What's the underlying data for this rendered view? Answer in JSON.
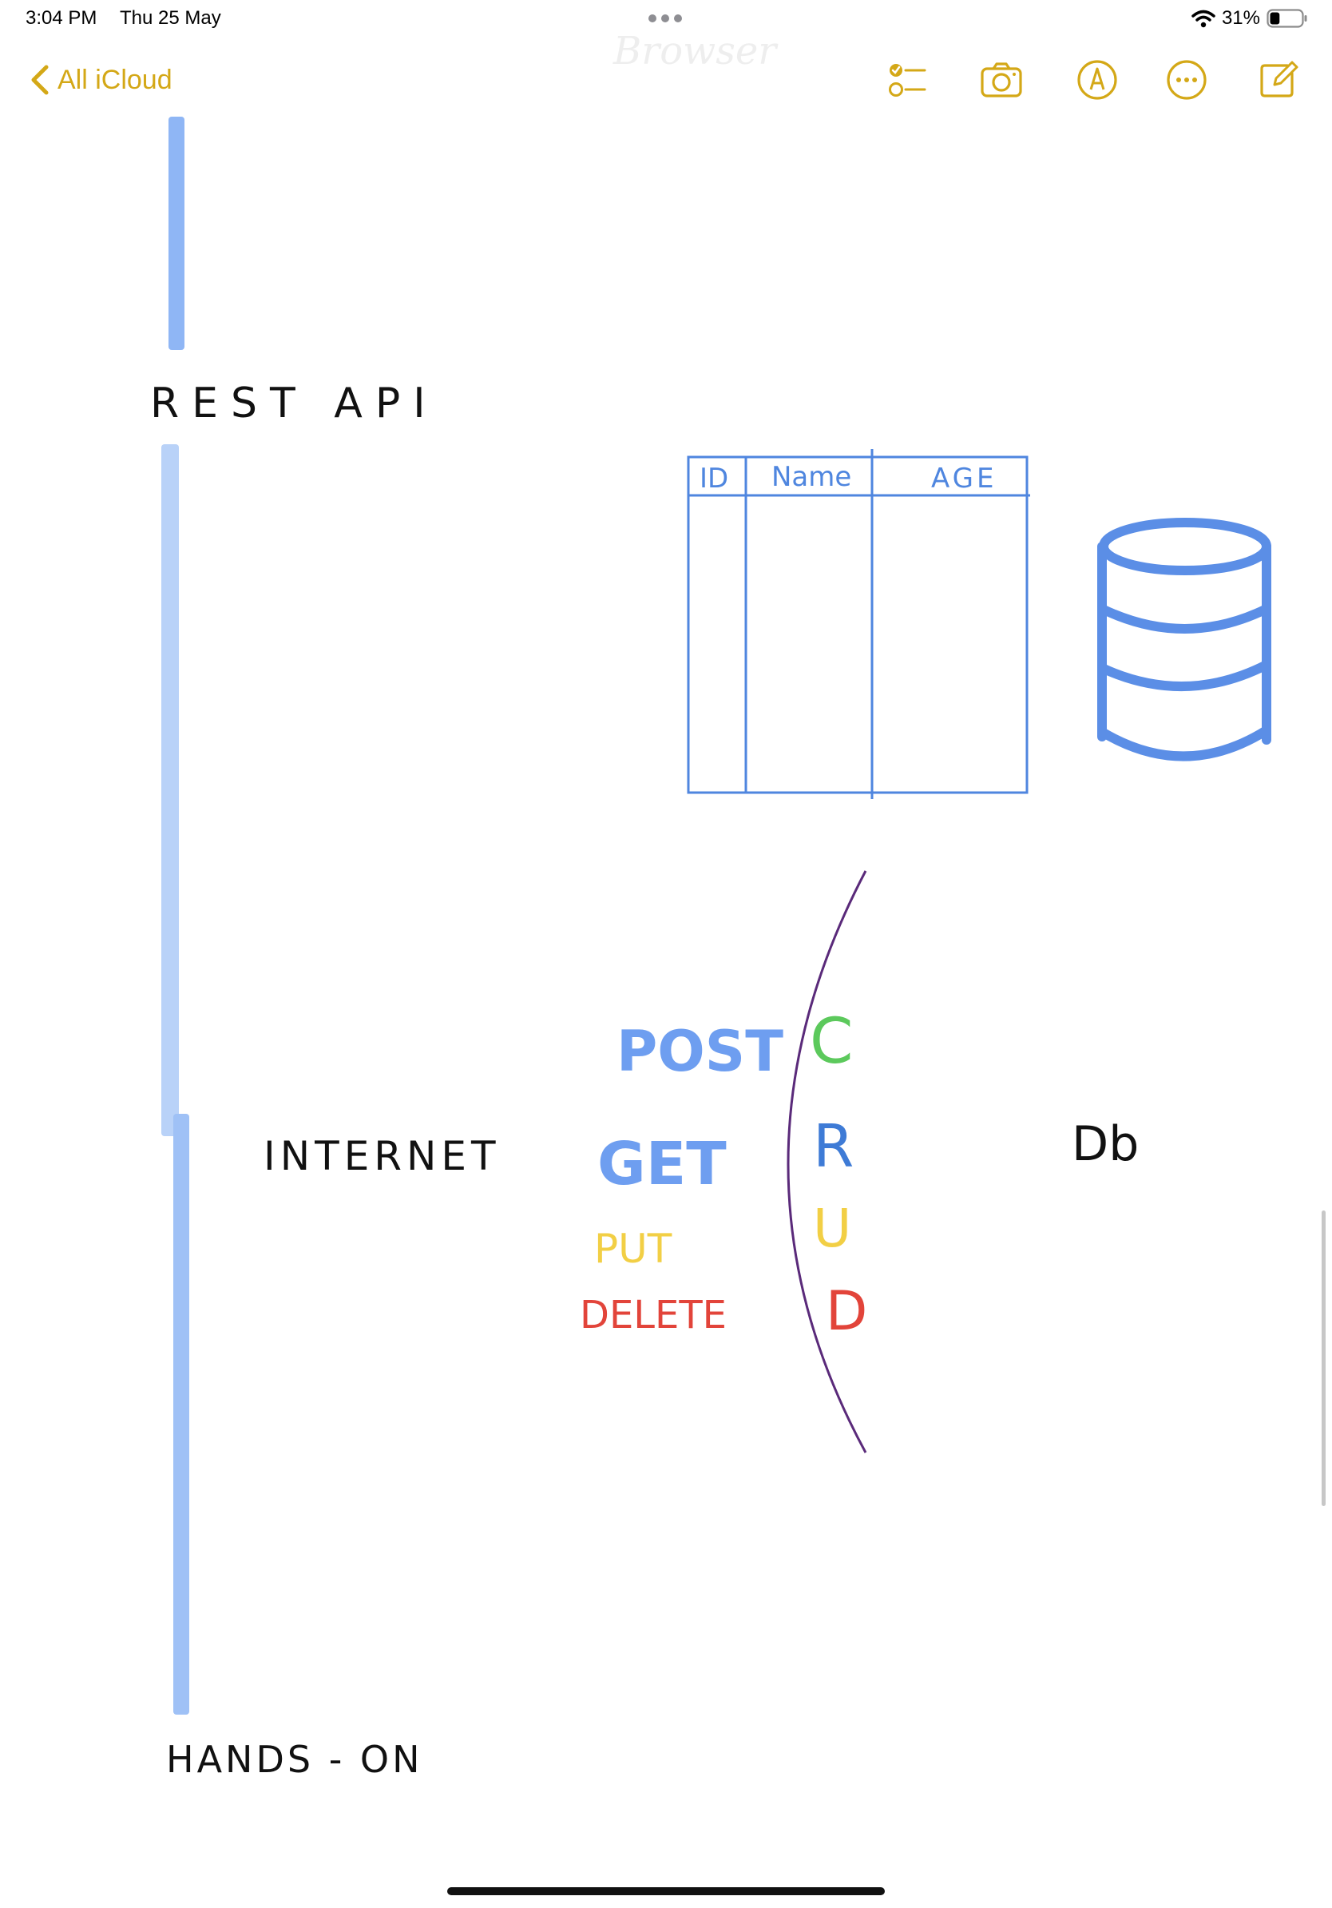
{
  "status_bar": {
    "time": "3:04 PM",
    "date": "Thu 25 May",
    "battery_percent": "31%",
    "battery_level": 0.31,
    "wifi_icon": "wifi-icon"
  },
  "toolbar": {
    "back_label": "All iCloud",
    "accent_color": "#d4a817",
    "icons": [
      "checklist-icon",
      "camera-icon",
      "markup-pen-icon",
      "more-options-icon",
      "compose-icon"
    ]
  },
  "note": {
    "faint_text": "Browser",
    "rest_api_label": "REST API",
    "internet_label": "INTERNET",
    "db_label": "Db",
    "hands_on_label": "HANDS - ON",
    "table": {
      "headers": [
        "ID",
        "Name",
        "AGE"
      ]
    },
    "methods": [
      {
        "label": "POST",
        "color": "#6e9ef0"
      },
      {
        "label": "GET",
        "color": "#6e9ef0"
      },
      {
        "label": "PUT",
        "color": "#f2cf45"
      },
      {
        "label": "DELETE",
        "color": "#e2443a"
      }
    ],
    "crud": [
      {
        "letter": "C",
        "color": "#5cc95c"
      },
      {
        "letter": "R",
        "color": "#3e7bd6"
      },
      {
        "letter": "U",
        "color": "#f2cf45"
      },
      {
        "letter": "D",
        "color": "#e2443a"
      }
    ],
    "database_icon": "database-cylinder-icon",
    "ink_blue": "#5b8ee6",
    "highlighter_blue": "#8fb6f5",
    "divider_color": "#5a2a7a"
  }
}
